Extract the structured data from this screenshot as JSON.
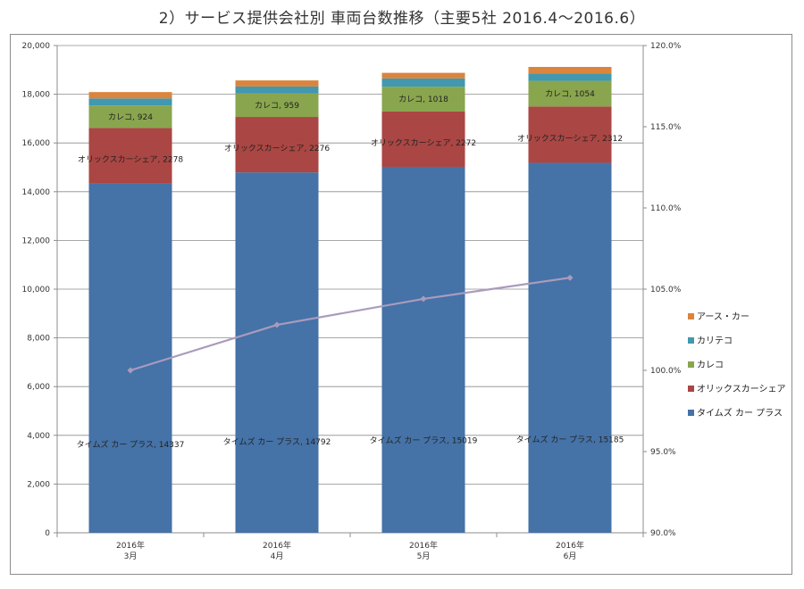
{
  "title": "2）サービス提供会社別 車両台数推移（主要5社 2016.4～2016.6）",
  "chart_data": {
    "type": "bar",
    "stacked": true,
    "categories": [
      [
        "2016年",
        "3月"
      ],
      [
        "2016年",
        "4月"
      ],
      [
        "2016年",
        "5月"
      ],
      [
        "2016年",
        "6月"
      ]
    ],
    "series": [
      {
        "name": "タイムズ カー プラス",
        "color": "#4572a7",
        "values": [
          14337,
          14792,
          15019,
          15185
        ],
        "labels": [
          "タイムズ カー プラス, 14337",
          "タイムズ カー プラス, 14792",
          "タイムズ カー プラス, 15019",
          "タイムズ カー プラス, 15185"
        ]
      },
      {
        "name": "オリックスカーシェア",
        "color": "#aa4643",
        "values": [
          2278,
          2276,
          2272,
          2312
        ],
        "labels": [
          "オリックスカーシェア, 2278",
          "オリックスカーシェア, 2276",
          "オリックスカーシェア, 2272",
          "オリックスカーシェア, 2312"
        ]
      },
      {
        "name": "カレコ",
        "color": "#89a54e",
        "values": [
          924,
          959,
          1018,
          1054
        ],
        "labels": [
          "カレコ, 924",
          "カレコ, 959",
          "カレコ, 1018",
          "カレコ, 1054"
        ]
      },
      {
        "name": "カリテコ",
        "color": "#4198af",
        "values": [
          290,
          290,
          340,
          300
        ],
        "labels": []
      },
      {
        "name": "アース・カー",
        "color": "#db843d",
        "values": [
          260,
          250,
          230,
          270
        ],
        "labels": []
      }
    ],
    "line": {
      "color": "#a99bbd",
      "values": [
        100.0,
        102.8,
        104.4,
        105.7
      ]
    },
    "ylim": [
      0,
      20000
    ],
    "yticks": [
      "0",
      "2,000",
      "4,000",
      "6,000",
      "8,000",
      "10,000",
      "12,000",
      "14,000",
      "16,000",
      "18,000",
      "20,000"
    ],
    "y2lim": [
      90,
      120
    ],
    "y2ticks": [
      "90.0%",
      "95.0%",
      "100.0%",
      "105.0%",
      "110.0%",
      "115.0%",
      "120.0%"
    ],
    "legend_order": [
      "アース・カー",
      "カリテコ",
      "カレコ",
      "オリックスカーシェア",
      "タイムズ カー プラス"
    ],
    "legend_position": "right",
    "grid": true
  }
}
